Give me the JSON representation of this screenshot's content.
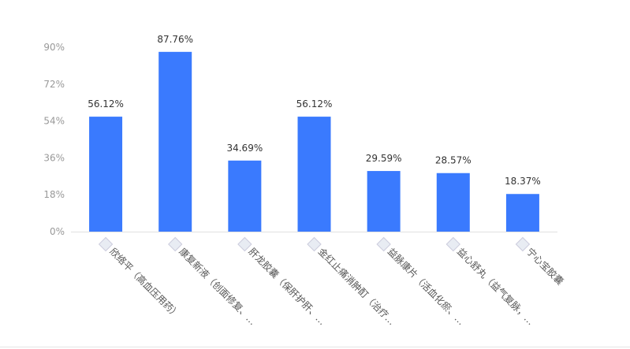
{
  "chart_data": {
    "type": "bar",
    "categories": [
      "欣络平（高血压用药）",
      "康复新液（创面修复、…",
      "肝龙胶囊（保肝护肝、…",
      "金红止痛消肿酊（治疗…",
      "益脉康片（活血化瘀、…",
      "益心舒丸（益气复脉，…",
      "宁心宝胶囊"
    ],
    "values": [
      56.12,
      87.76,
      34.69,
      56.12,
      29.59,
      28.57,
      18.37
    ],
    "data_labels": [
      "56.12%",
      "87.76%",
      "34.69%",
      "56.12%",
      "29.59%",
      "28.57%",
      "18.37%"
    ],
    "ylim": [
      0,
      90
    ],
    "yticks": [
      0,
      18,
      36,
      54,
      72,
      90
    ],
    "ytick_labels": [
      "0%",
      "18%",
      "36%",
      "54%",
      "72%",
      "90%"
    ],
    "grid": false,
    "bar_color": "#3a7afe",
    "category_icons": [
      "product-thumbnail-icon",
      "product-thumbnail-icon",
      "product-thumbnail-icon",
      "product-thumbnail-icon",
      "product-thumbnail-icon",
      "product-thumbnail-icon",
      "product-thumbnail-icon"
    ]
  }
}
